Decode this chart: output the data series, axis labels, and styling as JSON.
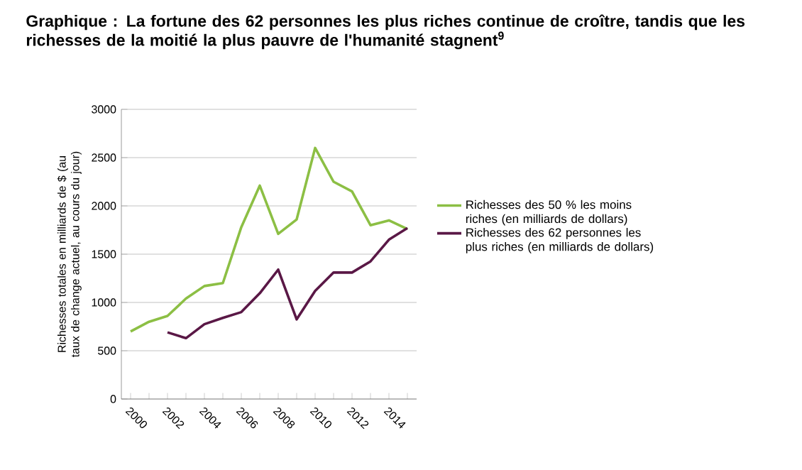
{
  "chart_data": {
    "type": "line",
    "title": "Graphique : La fortune des 62 personnes les plus riches continue de croître, tandis que les richesses de la moitié la plus pauvre de l'humanité stagnent$^{9}$",
    "ylabel": "Richesses totales en milliards de $ (au taux de change actuel, au cours du jour)",
    "categories": [
      "2000",
      null,
      "2002",
      null,
      "2004",
      null,
      "2006",
      null,
      "2008",
      null,
      "2010",
      null,
      "2012",
      null,
      "2014",
      null
    ],
    "series": [
      {
        "name": "Richesses des 50 % les moins riches (en milliards de dollars)",
        "color": "#8cbf44",
        "values": [
          700,
          800,
          860,
          1040,
          1170,
          1200,
          1780,
          2210,
          1710,
          1860,
          2600,
          2250,
          2150,
          1800,
          1850,
          1760
        ]
      },
      {
        "name": "Richesses des 62 personnes les plus riches (en milliards de dollars)",
        "color": "#5a1846",
        "values": [
          null,
          null,
          690,
          630,
          775,
          840,
          900,
          1095,
          1340,
          825,
          1120,
          1310,
          1310,
          1425,
          1650,
          1770
        ]
      }
    ],
    "ylim": [
      0,
      3000
    ],
    "yticks": [
      0,
      500,
      1000,
      1500,
      2000,
      2500,
      3000
    ],
    "grid": "y",
    "legend": "right",
    "marker": "none",
    "line_style": "solid"
  }
}
